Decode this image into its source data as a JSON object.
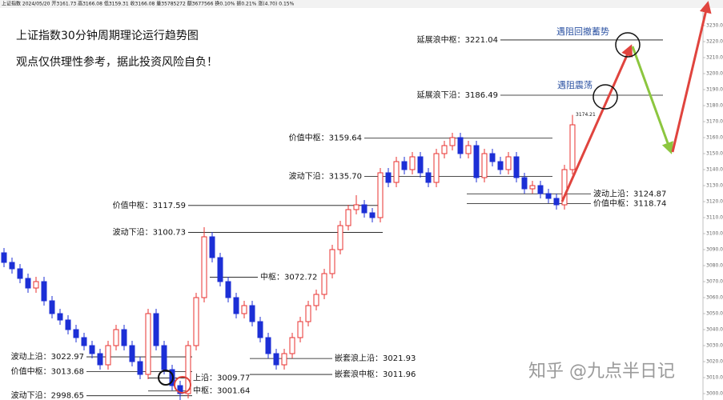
{
  "chart_data": {
    "type": "candlestick",
    "header": "上证指数 2024/05/20 开3161.73 高3166.08 低3159.31 收3166.08 量35785272 额3677566 换0.10% 振0.21% 涨(4.70) 0.15%",
    "title": "上证指数30分钟周期理论运行趋势图",
    "subtitle": "观点仅供理性参考，据此投资风险自负！",
    "annotations": [
      "遇阻回撤蓄势",
      "遇阻震荡"
    ],
    "watermark": "知乎 @九点半日记",
    "up_color": "#e8312f",
    "down_color": "#1c2fd6",
    "ylim": [
      2996,
      3246
    ],
    "yticks": [
      {
        "value": 3000,
        "label": "3000.00"
      },
      {
        "value": 3010,
        "label": "3010.00"
      },
      {
        "value": 3020,
        "label": "3020.00"
      },
      {
        "value": 3030,
        "label": "3030.00"
      },
      {
        "value": 3040,
        "label": "3040.00"
      },
      {
        "value": 3050,
        "label": "3050.00"
      },
      {
        "value": 3060,
        "label": "3060.00"
      },
      {
        "value": 3070,
        "label": "3070.00"
      },
      {
        "value": 3080,
        "label": "3080.00"
      },
      {
        "value": 3090,
        "label": "3090.00"
      },
      {
        "value": 3100,
        "label": "3100.00"
      },
      {
        "value": 3110,
        "label": "3110.00"
      },
      {
        "value": 3120,
        "label": "3120.00"
      },
      {
        "value": 3130,
        "label": "3130.00"
      },
      {
        "value": 3140,
        "label": "3140.00"
      },
      {
        "value": 3150,
        "label": "3150.00"
      },
      {
        "value": 3160,
        "label": "3160.00"
      },
      {
        "value": 3170,
        "label": "3170.00"
      },
      {
        "value": 3180,
        "label": "3180.00"
      },
      {
        "value": 3190,
        "label": "3190.00"
      },
      {
        "value": 3200,
        "label": "3200.00"
      },
      {
        "value": 3210,
        "label": "3210.00"
      },
      {
        "value": 3220,
        "label": "3220.00"
      },
      {
        "value": 3230,
        "label": "3230.00"
      }
    ],
    "open": [
      3088,
      3082,
      3078,
      3072,
      3066,
      3070,
      3058,
      3050,
      3046,
      3040,
      3035,
      3030,
      3025,
      3018,
      3030,
      3040,
      3030,
      3020,
      3012,
      3050,
      3030,
      3015,
      3005,
      3000,
      3030,
      3060,
      3098,
      3085,
      3070,
      3060,
      3050,
      3055,
      3045,
      3035,
      3025,
      3018,
      3025,
      3035,
      3045,
      3055,
      3062,
      3075,
      3090,
      3105,
      3115,
      3118,
      3113,
      3110,
      3138,
      3132,
      3145,
      3140,
      3148,
      3138,
      3132,
      3150,
      3155,
      3160,
      3150,
      3155,
      3135,
      3150,
      3145,
      3140,
      3148,
      3135,
      3128,
      3130,
      3125,
      3122,
      3118,
      3140
    ],
    "close": [
      3082,
      3078,
      3072,
      3066,
      3070,
      3058,
      3050,
      3046,
      3040,
      3035,
      3030,
      3025,
      3018,
      3030,
      3040,
      3030,
      3020,
      3012,
      3050,
      3030,
      3015,
      3005,
      3000,
      3030,
      3060,
      3098,
      3085,
      3070,
      3060,
      3050,
      3055,
      3045,
      3035,
      3025,
      3018,
      3025,
      3035,
      3045,
      3055,
      3062,
      3075,
      3090,
      3105,
      3115,
      3118,
      3113,
      3110,
      3138,
      3132,
      3145,
      3140,
      3148,
      3138,
      3132,
      3150,
      3155,
      3160,
      3150,
      3155,
      3135,
      3150,
      3145,
      3140,
      3148,
      3135,
      3128,
      3130,
      3125,
      3122,
      3118,
      3140,
      3168
    ],
    "high": [
      3091,
      3085,
      3081,
      3075,
      3073,
      3073,
      3061,
      3053,
      3049,
      3043,
      3038,
      3033,
      3028,
      3033,
      3043,
      3043,
      3033,
      3023,
      3053,
      3053,
      3033,
      3018,
      3008,
      3033,
      3063,
      3104,
      3101,
      3088,
      3073,
      3063,
      3058,
      3058,
      3048,
      3038,
      3028,
      3028,
      3038,
      3048,
      3058,
      3065,
      3078,
      3093,
      3108,
      3118,
      3124,
      3121,
      3116,
      3141,
      3141,
      3148,
      3148,
      3151,
      3151,
      3141,
      3153,
      3158,
      3163,
      3163,
      3158,
      3158,
      3153,
      3153,
      3148,
      3151,
      3151,
      3138,
      3133,
      3133,
      3128,
      3125,
      3143,
      3174.21
    ],
    "low": [
      3079,
      3075,
      3069,
      3063,
      3063,
      3055,
      3047,
      3043,
      3037,
      3032,
      3027,
      3022,
      3015,
      3015,
      3027,
      3027,
      3017,
      3009,
      3009,
      3027,
      3012,
      3002,
      2995.54,
      2997,
      3027,
      3057,
      3082,
      3067,
      3057,
      3047,
      3047,
      3042,
      3032,
      3022,
      3015,
      3015,
      3022,
      3032,
      3042,
      3052,
      3059,
      3072,
      3087,
      3102,
      3112,
      3110,
      3107,
      3107,
      3129,
      3129,
      3137,
      3137,
      3135,
      3129,
      3129,
      3147,
      3152,
      3147,
      3147,
      3132,
      3132,
      3142,
      3137,
      3137,
      3132,
      3125,
      3125,
      3122,
      3119,
      3115,
      3115,
      3137
    ],
    "levels": [
      {
        "label": "延展浪中枢：",
        "value": 3221.04
      },
      {
        "label": "延展浪下沿：",
        "value": 3186.49
      },
      {
        "label": "价值中枢：",
        "value": 3159.64
      },
      {
        "label": "波动下沿：",
        "value": 3135.7,
        "value_label": "3135.70"
      },
      {
        "label": "波动上沿：",
        "value": 3124.87
      },
      {
        "label": "价值中枢：",
        "value": 3118.74
      },
      {
        "label": "价值中枢：",
        "value": 3117.59
      },
      {
        "label": "波动下沿：",
        "value": 3100.73
      },
      {
        "label": "中枢：",
        "value": 3072.72
      },
      {
        "label": "嵌套浪上沿：",
        "value": 3021.93
      },
      {
        "label": "嵌套浪中枢：",
        "value": 3011.96
      },
      {
        "label": "波动上沿：",
        "value": 3022.97
      },
      {
        "label": "价值中枢：",
        "value": 3013.68
      },
      {
        "label": "波动下沿：",
        "value": 2998.65
      },
      {
        "label": "上沿：",
        "value": 3009.77
      },
      {
        "label": "中枢：",
        "value": 3001.64
      }
    ]
  }
}
